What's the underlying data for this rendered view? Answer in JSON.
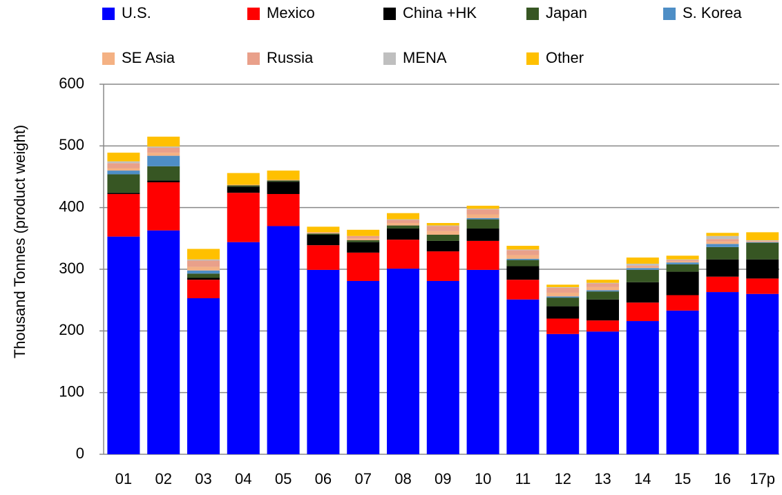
{
  "chart_data": {
    "type": "stacked_bar",
    "y_label": "Thousand Tonnes (product weight)",
    "categories": [
      "01",
      "02",
      "03",
      "04",
      "05",
      "06",
      "07",
      "08",
      "09",
      "10",
      "11",
      "12",
      "13",
      "14",
      "15",
      "16",
      "17p"
    ],
    "series": [
      {
        "name": "U.S.",
        "color": "#0000ff",
        "values": [
          353,
          363,
          253,
          344,
          370,
          299,
          281,
          301,
          281,
          299,
          251,
          195,
          199,
          216,
          233,
          263,
          260
        ]
      },
      {
        "name": "Mexico",
        "color": "#ff0000",
        "values": [
          69,
          78,
          30,
          80,
          52,
          40,
          46,
          47,
          48,
          47,
          32,
          25,
          18,
          30,
          25,
          25,
          25
        ]
      },
      {
        "name": "China +HK",
        "color": "#000000",
        "values": [
          2,
          3,
          3,
          10,
          20,
          17,
          17,
          18,
          17,
          20,
          22,
          20,
          34,
          33,
          38,
          28,
          31
        ]
      },
      {
        "name": "Japan",
        "color": "#375623",
        "values": [
          30,
          23,
          7,
          2,
          2,
          2,
          3,
          5,
          10,
          15,
          10,
          14,
          13,
          20,
          12,
          20,
          27
        ]
      },
      {
        "name": "S. Korea",
        "color": "#4e8ec6",
        "values": [
          6,
          17,
          5,
          0,
          0,
          0,
          0,
          0,
          0,
          2,
          2,
          2,
          2,
          3,
          3,
          5,
          1
        ]
      },
      {
        "name": "SE Asia",
        "color": "#f4b183",
        "values": [
          4,
          5,
          6,
          1,
          1,
          1,
          3,
          4,
          6,
          6,
          6,
          6,
          5,
          2,
          2,
          4,
          1
        ]
      },
      {
        "name": "Russia",
        "color": "#e9a08a",
        "values": [
          8,
          8,
          10,
          0,
          0,
          1,
          4,
          5,
          8,
          8,
          8,
          8,
          6,
          2,
          2,
          4,
          1
        ]
      },
      {
        "name": "MENA",
        "color": "#bfbfbf",
        "values": [
          3,
          2,
          2,
          0,
          0,
          0,
          0,
          1,
          1,
          1,
          1,
          1,
          1,
          3,
          1,
          5,
          1
        ]
      },
      {
        "name": "Other",
        "color": "#ffc000",
        "values": [
          14,
          16,
          17,
          19,
          15,
          9,
          10,
          10,
          4,
          5,
          6,
          4,
          5,
          10,
          6,
          5,
          13
        ]
      }
    ],
    "ylim": [
      0,
      600
    ],
    "yticks": [
      0,
      100,
      200,
      300,
      400,
      500,
      600
    ],
    "grid": true
  }
}
